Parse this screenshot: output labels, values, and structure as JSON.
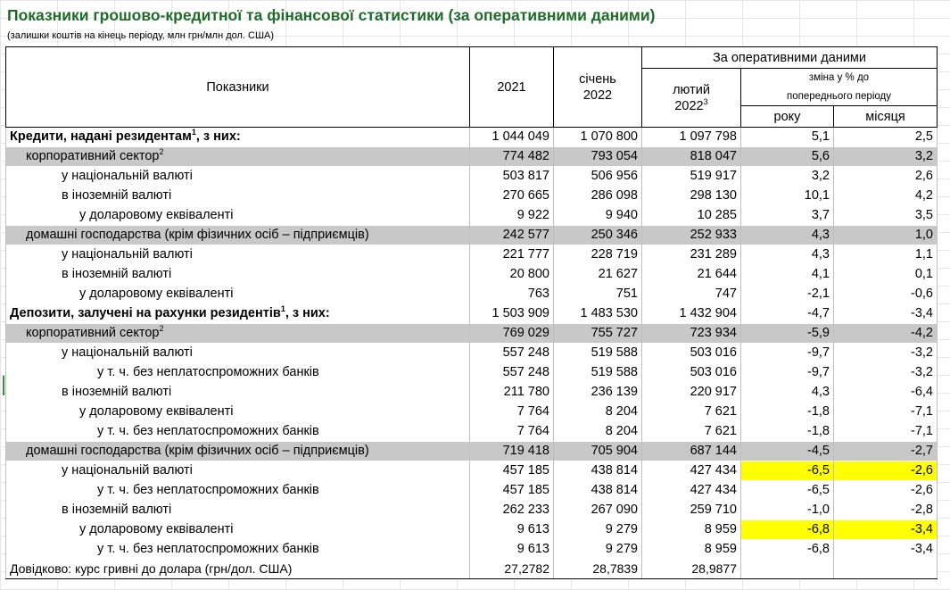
{
  "title": "Показники грошово-кредитної та фінансової статистики (за оперативними даними)",
  "subtitle": "(залишки коштів на кінець періоду, млн грн/млн дол. США)",
  "header": {
    "indicators": "Показники",
    "year2021": "2021",
    "jan_line1": "січень",
    "jan_line2": "2022",
    "operative": "За оперативними даними",
    "feb_line1": "лютий",
    "feb_line2": "2022",
    "feb_sup": "3",
    "change_line1": "зміна у % до",
    "change_line2": "попереднього періоду",
    "year_col": "року",
    "month_col": "місяця"
  },
  "rows": [
    {
      "label": "Кредити, надані резидентам",
      "sup": "1",
      "suffix": ", з них:",
      "v2021": "1 044 049",
      "jan": "1 070 800",
      "feb": "1 097 798",
      "year": "5,1",
      "month": "2,5"
    },
    {
      "label": "корпоративний сектор",
      "sup": "2",
      "suffix": "",
      "v2021": "774 482",
      "jan": "793 054",
      "feb": "818 047",
      "year": "5,6",
      "month": "3,2"
    },
    {
      "label": "у національній валюті",
      "sup": "",
      "suffix": "",
      "v2021": "503 817",
      "jan": "506 956",
      "feb": "519 917",
      "year": "3,2",
      "month": "2,6"
    },
    {
      "label": "в іноземній валюті",
      "sup": "",
      "suffix": "",
      "v2021": "270 665",
      "jan": "286 098",
      "feb": "298 130",
      "year": "10,1",
      "month": "4,2"
    },
    {
      "label": "у доларовому еквіваленті",
      "sup": "",
      "suffix": "",
      "v2021": "9 922",
      "jan": "9 940",
      "feb": "10 285",
      "year": "3,7",
      "month": "3,5"
    },
    {
      "label": "домашні господарства (крім фізичних осіб – підприємців)",
      "sup": "",
      "suffix": "",
      "v2021": "242 577",
      "jan": "250 346",
      "feb": "252 933",
      "year": "4,3",
      "month": "1,0"
    },
    {
      "label": "у національній валюті",
      "sup": "",
      "suffix": "",
      "v2021": "221 777",
      "jan": "228 719",
      "feb": "231 289",
      "year": "4,3",
      "month": "1,1"
    },
    {
      "label": "в іноземній валюті",
      "sup": "",
      "suffix": "",
      "v2021": "20 800",
      "jan": "21 627",
      "feb": "21 644",
      "year": "4,1",
      "month": "0,1"
    },
    {
      "label": "у доларовому еквіваленті",
      "sup": "",
      "suffix": "",
      "v2021": "763",
      "jan": "751",
      "feb": "747",
      "year": "-2,1",
      "month": "-0,6"
    },
    {
      "label": "Депозити, залучені на рахунки резидентів",
      "sup": "1",
      "suffix": ", з них:",
      "v2021": "1 503 909",
      "jan": "1 483 530",
      "feb": "1 432 904",
      "year": "-4,7",
      "month": "-3,4"
    },
    {
      "label": "корпоративний сектор",
      "sup": "2",
      "suffix": "",
      "v2021": "769 029",
      "jan": "755 727",
      "feb": "723 934",
      "year": "-5,9",
      "month": "-4,2"
    },
    {
      "label": "у національній валюті",
      "sup": "",
      "suffix": "",
      "v2021": "557 248",
      "jan": "519 588",
      "feb": "503 016",
      "year": "-9,7",
      "month": "-3,2"
    },
    {
      "label": "у т. ч. без неплатоспроможних банків",
      "sup": "",
      "suffix": "",
      "v2021": "557 248",
      "jan": "519 588",
      "feb": "503 016",
      "year": "-9,7",
      "month": "-3,2"
    },
    {
      "label": "в іноземній валюті",
      "sup": "",
      "suffix": "",
      "v2021": "211 780",
      "jan": "236 139",
      "feb": "220 917",
      "year": "4,3",
      "month": "-6,4"
    },
    {
      "label": "у доларовому еквіваленті",
      "sup": "",
      "suffix": "",
      "v2021": "7 764",
      "jan": "8 204",
      "feb": "7 621",
      "year": "-1,8",
      "month": "-7,1"
    },
    {
      "label": "у т. ч. без неплатоспроможних банків",
      "sup": "",
      "suffix": "",
      "v2021": "7 764",
      "jan": "8 204",
      "feb": "7 621",
      "year": "-1,8",
      "month": "-7,1"
    },
    {
      "label": "домашні господарства (крім фізичних осіб – підприємців)",
      "sup": "",
      "suffix": "",
      "v2021": "719 418",
      "jan": "705 904",
      "feb": "687 144",
      "year": "-4,5",
      "month": "-2,7"
    },
    {
      "label": "у національній валюті",
      "sup": "",
      "suffix": "",
      "v2021": "457 185",
      "jan": "438 814",
      "feb": "427 434",
      "year": "-6,5",
      "month": "-2,6"
    },
    {
      "label": "у т. ч. без неплатоспроможних банків",
      "sup": "",
      "suffix": "",
      "v2021": "457 185",
      "jan": "438 814",
      "feb": "427 434",
      "year": "-6,5",
      "month": "-2,6"
    },
    {
      "label": "в іноземній валюті",
      "sup": "",
      "suffix": "",
      "v2021": "262 233",
      "jan": "267 090",
      "feb": "259 710",
      "year": "-1,0",
      "month": "-2,8"
    },
    {
      "label": "у доларовому еквіваленті",
      "sup": "",
      "suffix": "",
      "v2021": "9 613",
      "jan": "9 279",
      "feb": "8 959",
      "year": "-6,8",
      "month": "-3,4"
    },
    {
      "label": "у т. ч. без неплатоспроможних банків",
      "sup": "",
      "suffix": "",
      "v2021": "9 613",
      "jan": "9 279",
      "feb": "8 959",
      "year": "-6,8",
      "month": "-3,4"
    }
  ],
  "reference": {
    "label": "Довідково: курс гривні до долара (грн/дол. США)",
    "v2021": "27,2782",
    "jan": "28,7839",
    "feb": "28,9877"
  },
  "colors": {
    "title": "#1f6b2a",
    "grey_row": "#c8c8c8",
    "highlight": "#ffff00"
  }
}
